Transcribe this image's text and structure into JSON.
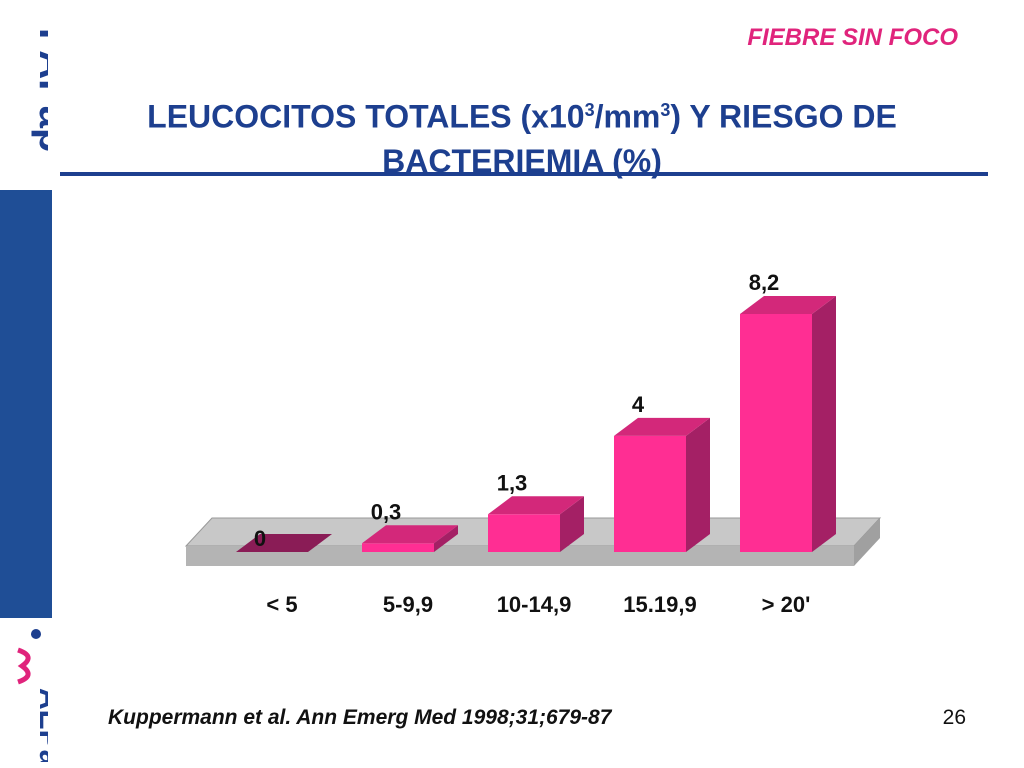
{
  "header": {
    "tag": "FIEBRE SIN FOCO",
    "title_line1_a": "LEUCOCITOS TOTALES (x10",
    "title_sup1": "3",
    "title_line1_b": "/mm",
    "title_sup2": "3",
    "title_line1_c": ") Y RIESGO DE",
    "title_line2": "BACTERIEMIA (%)"
  },
  "logos": {
    "top": "FAPap",
    "bottom": "AEPap"
  },
  "chart_data": {
    "type": "bar",
    "categories": [
      "< 5",
      "5-9,9",
      "10-14,9",
      "15.19,9",
      "> 20'"
    ],
    "values": [
      0,
      0.3,
      1.3,
      4,
      8.2
    ],
    "value_labels": [
      "0",
      "0,3",
      "1,3",
      "4",
      "8,2"
    ],
    "title": "",
    "xlabel": "",
    "ylabel": "",
    "ylim": [
      0,
      8.2
    ],
    "grid": false,
    "legend": "none",
    "colors": {
      "bar_front": "#ff2e93",
      "bar_side": "#a42065",
      "bar_top": "#d3287a",
      "zero_bar": "#8a1c56",
      "floor": "#c8c8c8",
      "floor_edge": "#999999"
    }
  },
  "footer": {
    "citation": "Kuppermann et al. Ann Emerg Med 1998;31;679-87",
    "page_number": "26"
  }
}
